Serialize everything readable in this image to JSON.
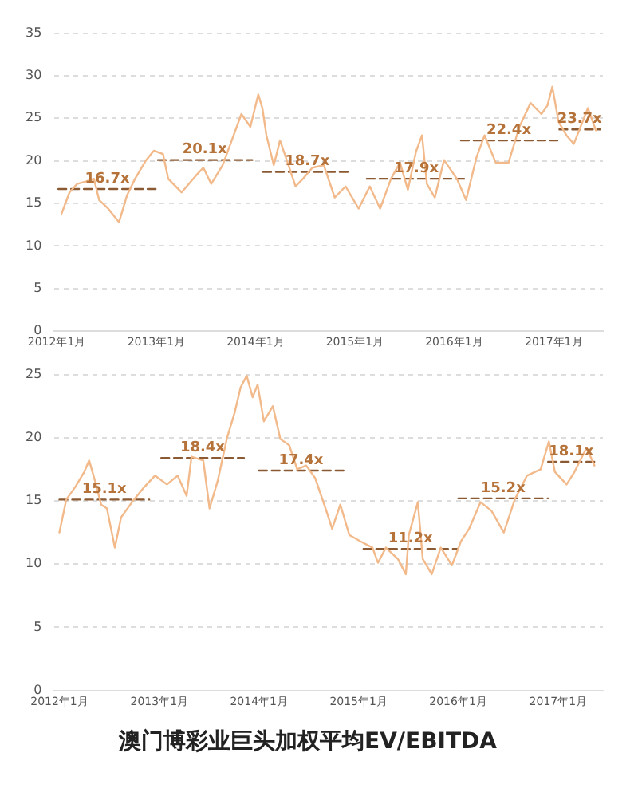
{
  "chart_data": [
    {
      "type": "line",
      "marker": "none",
      "grid": "y",
      "legend": false,
      "xlim": [
        "2011-12-24",
        "2017-07-01"
      ],
      "xticks": [
        {
          "value": "2012-01",
          "label": "2012年1月"
        },
        {
          "value": "2013-01",
          "label": "2013年1月"
        },
        {
          "value": "2014-01",
          "label": "2014年1月"
        },
        {
          "value": "2015-01",
          "label": "2015年1月"
        },
        {
          "value": "2016-01",
          "label": "2016年1月"
        },
        {
          "value": "2017-01",
          "label": "2017年1月"
        }
      ],
      "ylim": [
        0,
        35
      ],
      "yticks": [
        0,
        5,
        10,
        15,
        20,
        25,
        30,
        35
      ],
      "series": [
        {
          "color": "#f2b98a",
          "x": [
            "2012-01-19",
            "2012-02-17",
            "2012-03-16",
            "2012-04-19",
            "2012-05-17",
            "2012-06-05",
            "2012-07-08",
            "2012-08-17",
            "2012-09-16",
            "2012-10-15",
            "2012-11-25",
            "2012-12-23",
            "2013-01-26",
            "2013-02-14",
            "2013-04-04",
            "2013-05-25",
            "2013-06-23",
            "2013-07-22",
            "2013-09-02",
            "2013-10-01",
            "2013-11-10",
            "2013-12-13",
            "2014-01-11",
            "2014-01-26",
            "2014-02-10",
            "2014-03-09",
            "2014-04-01",
            "2014-04-29",
            "2014-05-28",
            "2014-06-27",
            "2014-07-29",
            "2014-09-09",
            "2014-10-19",
            "2014-11-28",
            "2015-01-15",
            "2015-02-25",
            "2015-04-04",
            "2015-05-14",
            "2015-06-16",
            "2015-07-15",
            "2015-08-14",
            "2015-09-05",
            "2015-09-23",
            "2015-10-22",
            "2015-11-25",
            "2016-01-11",
            "2016-02-14",
            "2016-03-23",
            "2016-04-22",
            "2016-06-02",
            "2016-07-19",
            "2016-08-28",
            "2016-10-08",
            "2016-11-17",
            "2016-12-09",
            "2016-12-27",
            "2017-01-19",
            "2017-02-17",
            "2017-03-16",
            "2017-05-07",
            "2017-06-05"
          ],
          "values": [
            13.8,
            16.3,
            17.3,
            17.6,
            17.9,
            15.4,
            14.4,
            12.8,
            16,
            17.9,
            20.1,
            21.2,
            20.8,
            17.9,
            16.3,
            18.2,
            19.2,
            17.3,
            19.5,
            22,
            25.5,
            24,
            27.8,
            26.2,
            23,
            19.5,
            22.4,
            19.8,
            17,
            18,
            19.2,
            19.5,
            15.7,
            17,
            14.4,
            17,
            14.4,
            17.9,
            19.8,
            16.6,
            21.1,
            23,
            17.3,
            15.7,
            20.1,
            17.9,
            15.4,
            20.4,
            23,
            19.8,
            19.8,
            24,
            26.8,
            25.5,
            26.5,
            28.7,
            24.6,
            23,
            22,
            26.2,
            23.6
          ]
        },
        {
          "color": "#8c5a32",
          "line_style": "dashed",
          "x": [
            "2012-01-07",
            "2012-07-05",
            "2013-01-01"
          ],
          "values": [
            16.7,
            16.7,
            16.7
          ],
          "value_labels": [
            null,
            "16.7x",
            null
          ]
        },
        {
          "color": "#8c5a32",
          "line_style": "dashed",
          "x": [
            "2013-01-07",
            "2013-06-28",
            "2013-12-20"
          ],
          "values": [
            20.1,
            20.1,
            20.1
          ],
          "value_labels": [
            null,
            "20.1x",
            null
          ]
        },
        {
          "color": "#8c5a32",
          "line_style": "dashed",
          "x": [
            "2014-01-29",
            "2014-07-10",
            "2014-12-23"
          ],
          "values": [
            18.7,
            18.7,
            18.7
          ],
          "value_labels": [
            null,
            "18.7x",
            null
          ]
        },
        {
          "color": "#8c5a32",
          "line_style": "dashed",
          "x": [
            "2015-02-14",
            "2015-08-15",
            "2016-02-14"
          ],
          "values": [
            17.9,
            17.9,
            17.9
          ],
          "value_labels": [
            null,
            "17.9x",
            null
          ]
        },
        {
          "color": "#8c5a32",
          "line_style": "dashed",
          "x": [
            "2016-01-26",
            "2016-07-20",
            "2017-01-15"
          ],
          "values": [
            22.4,
            22.4,
            22.4
          ],
          "value_labels": [
            null,
            "22.4x",
            null
          ]
        },
        {
          "color": "#8c5a32",
          "line_style": "dashed",
          "x": [
            "2017-01-22",
            "2017-04-06",
            "2017-06-20"
          ],
          "values": [
            23.7,
            23.7,
            23.7
          ],
          "value_labels": [
            null,
            "23.7x",
            null
          ]
        }
      ]
    },
    {
      "type": "line",
      "marker": "none",
      "grid": "y",
      "legend": false,
      "title": "澳门博彩业巨头加权平均EV/EBITDA",
      "xlim": [
        "2011-12-14",
        "2017-06-14"
      ],
      "xticks": [
        {
          "value": "2012-01",
          "label": "2012年1月"
        },
        {
          "value": "2013-01",
          "label": "2013年1月"
        },
        {
          "value": "2014-01",
          "label": "2014年1月"
        },
        {
          "value": "2015-01",
          "label": "2015年1月"
        },
        {
          "value": "2016-01",
          "label": "2016年1月"
        },
        {
          "value": "2017-01",
          "label": "2017年1月"
        }
      ],
      "ylim": [
        0,
        25
      ],
      "yticks": [
        0,
        5,
        10,
        15,
        20,
        25
      ],
      "series": [
        {
          "color": "#f2b98a",
          "x": [
            "2012-01-01",
            "2012-01-26",
            "2012-02-28",
            "2012-04-01",
            "2012-04-19",
            "2012-05-10",
            "2012-06-02",
            "2012-06-23",
            "2012-07-22",
            "2012-08-14",
            "2012-09-23",
            "2012-11-07",
            "2012-12-16",
            "2013-01-29",
            "2013-03-09",
            "2013-04-11",
            "2013-04-29",
            "2013-06-11",
            "2013-07-04",
            "2013-08-03",
            "2013-09-05",
            "2013-10-04",
            "2013-10-26",
            "2013-11-17",
            "2013-12-09",
            "2013-12-27",
            "2014-01-19",
            "2014-02-21",
            "2014-03-20",
            "2014-04-22",
            "2014-05-21",
            "2014-06-23",
            "2014-07-26",
            "2014-09-05",
            "2014-09-26",
            "2014-10-26",
            "2014-11-28",
            "2015-01-08",
            "2015-02-21",
            "2015-03-13",
            "2015-04-11",
            "2015-05-25",
            "2015-06-23",
            "2015-07-04",
            "2015-08-06",
            "2015-08-24",
            "2015-09-26",
            "2015-10-29",
            "2015-12-09",
            "2016-01-11",
            "2016-02-10",
            "2016-03-23",
            "2016-05-02",
            "2016-06-16",
            "2016-07-26",
            "2016-09-09",
            "2016-10-29",
            "2016-11-28",
            "2016-12-20",
            "2017-02-01",
            "2017-03-02",
            "2017-04-15",
            "2017-05-14"
          ],
          "values": [
            12.5,
            15.1,
            16.1,
            17.3,
            18.2,
            16.6,
            14.7,
            14.4,
            11.3,
            13.7,
            14.9,
            16.1,
            17,
            16.3,
            17,
            15.4,
            18.5,
            18.2,
            14.4,
            16.6,
            19.9,
            22,
            24,
            24.9,
            23.2,
            24.2,
            21.3,
            22.5,
            19.9,
            19.4,
            17.5,
            17.8,
            16.8,
            14.2,
            12.8,
            14.7,
            12.3,
            11.8,
            11.3,
            10.1,
            11.3,
            10.4,
            9.2,
            12.3,
            14.9,
            10.4,
            9.2,
            11.3,
            9.9,
            11.8,
            12.8,
            14.9,
            14.2,
            12.5,
            15.1,
            17,
            17.5,
            19.7,
            17.3,
            16.3,
            17.3,
            19.2,
            17.8
          ]
        },
        {
          "color": "#8c5a32",
          "line_style": "dashed",
          "x": [
            "2012-01-01",
            "2012-06-13",
            "2012-11-25"
          ],
          "values": [
            15.1,
            15.1,
            15.1
          ],
          "value_labels": [
            null,
            "15.1x",
            null
          ]
        },
        {
          "color": "#8c5a32",
          "line_style": "dashed",
          "x": [
            "2013-01-08",
            "2013-06-08",
            "2013-11-07"
          ],
          "values": [
            18.4,
            18.4,
            18.4
          ],
          "value_labels": [
            null,
            "18.4x",
            null
          ]
        },
        {
          "color": "#8c5a32",
          "line_style": "dashed",
          "x": [
            "2014-01-01",
            "2014-06-04",
            "2014-11-07"
          ],
          "values": [
            17.4,
            17.4,
            17.4
          ],
          "value_labels": [
            null,
            "17.4x",
            null
          ]
        },
        {
          "color": "#8c5a32",
          "line_style": "dashed",
          "x": [
            "2015-01-19",
            "2015-07-10",
            "2016-01-01"
          ],
          "values": [
            11.2,
            11.2,
            11.2
          ],
          "value_labels": [
            null,
            "11.2x",
            null
          ]
        },
        {
          "color": "#8c5a32",
          "line_style": "dashed",
          "x": [
            "2016-01-01",
            "2016-06-13",
            "2016-11-25"
          ],
          "values": [
            15.2,
            15.2,
            15.2
          ],
          "value_labels": [
            null,
            "15.2x",
            null
          ]
        },
        {
          "color": "#8c5a32",
          "line_style": "dashed",
          "x": [
            "2016-11-25",
            "2017-02-18",
            "2017-05-14"
          ],
          "values": [
            18.1,
            18.1,
            18.1
          ],
          "value_labels": [
            null,
            "18.1x",
            null
          ]
        }
      ]
    }
  ]
}
